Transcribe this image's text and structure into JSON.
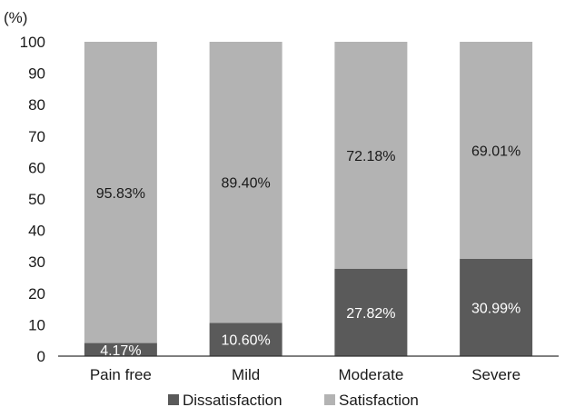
{
  "chart_data": {
    "type": "bar",
    "stacked": true,
    "title": "",
    "xlabel": "",
    "ylabel": "(%)",
    "ylim": [
      0,
      100
    ],
    "yticks": [
      "0",
      "10",
      "20",
      "30",
      "40",
      "50",
      "60",
      "70",
      "80",
      "90",
      "100"
    ],
    "categories": [
      "Pain free",
      "Mild",
      "Moderate",
      "Severe"
    ],
    "series": [
      {
        "name": "Dissatisfaction",
        "color": "#5a5a5a",
        "label_color": "#ffffff",
        "values": [
          4.17,
          10.6,
          27.82,
          30.99
        ],
        "labels": [
          "4.17%",
          "10.60%",
          "27.82%",
          "30.99%"
        ]
      },
      {
        "name": "Satisfaction",
        "color": "#b3b3b3",
        "label_color": "#1a1a1a",
        "values": [
          95.83,
          89.4,
          72.18,
          69.01
        ],
        "labels": [
          "95.83%",
          "89.40%",
          "72.18%",
          "69.01%"
        ]
      }
    ],
    "grid": false,
    "legend_position": "bottom"
  }
}
